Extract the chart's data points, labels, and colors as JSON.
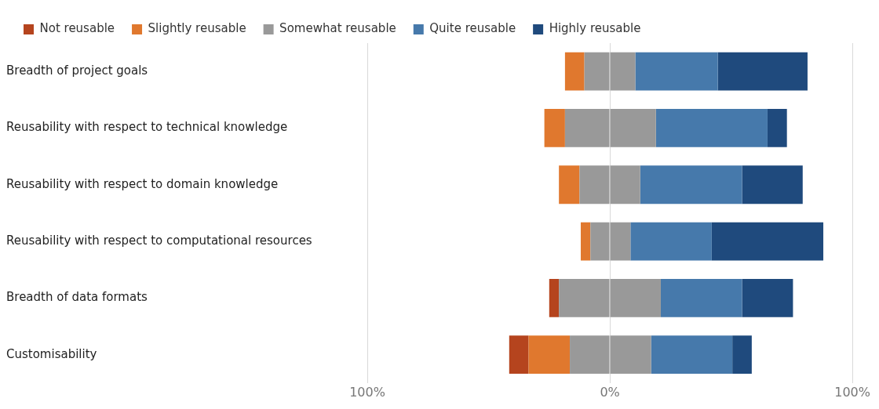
{
  "chart_data": {
    "type": "bar",
    "orientation": "horizontal",
    "stacked": true,
    "categories": [
      "Breadth of project goals",
      "Reusability with respect to technical knowledge",
      "Reusability with respect to domain knowledge",
      "Reusability with respect to computational resources",
      "Breadth of data formats",
      "Customisability"
    ],
    "series": [
      {
        "name": "Somewhat reusable",
        "color": "#999999",
        "values": [
          -10.5,
          -18.5,
          -12.5,
          -8,
          -21,
          -16.5
        ]
      },
      {
        "color": "#999999",
        "values": [
          10.5,
          19,
          12.5,
          8.5,
          21,
          17
        ]
      },
      {
        "name": "Slightly reusable",
        "color": "#e0782e",
        "values": [
          -8,
          -8.5,
          -8.5,
          -4,
          null,
          -17
        ]
      },
      {
        "name": "Not reusable",
        "color": "#b5441e",
        "values": [
          null,
          null,
          null,
          null,
          -4,
          -8
        ]
      },
      {
        "name": "Quite reusable",
        "color": "#4679ab",
        "values": [
          34,
          46,
          42,
          33.5,
          33.5,
          33.5
        ]
      },
      {
        "name": "Highly reusable",
        "color": "#1f4a7d",
        "values": [
          37,
          8,
          25,
          46,
          21,
          8
        ]
      }
    ],
    "xlim": [
      -100,
      100
    ],
    "xticks": [
      {
        "value": -100,
        "label": "100%"
      },
      {
        "value": 0,
        "label": "0%"
      },
      {
        "value": 100,
        "label": "100%"
      }
    ],
    "grid": "x",
    "legend": "top left"
  }
}
